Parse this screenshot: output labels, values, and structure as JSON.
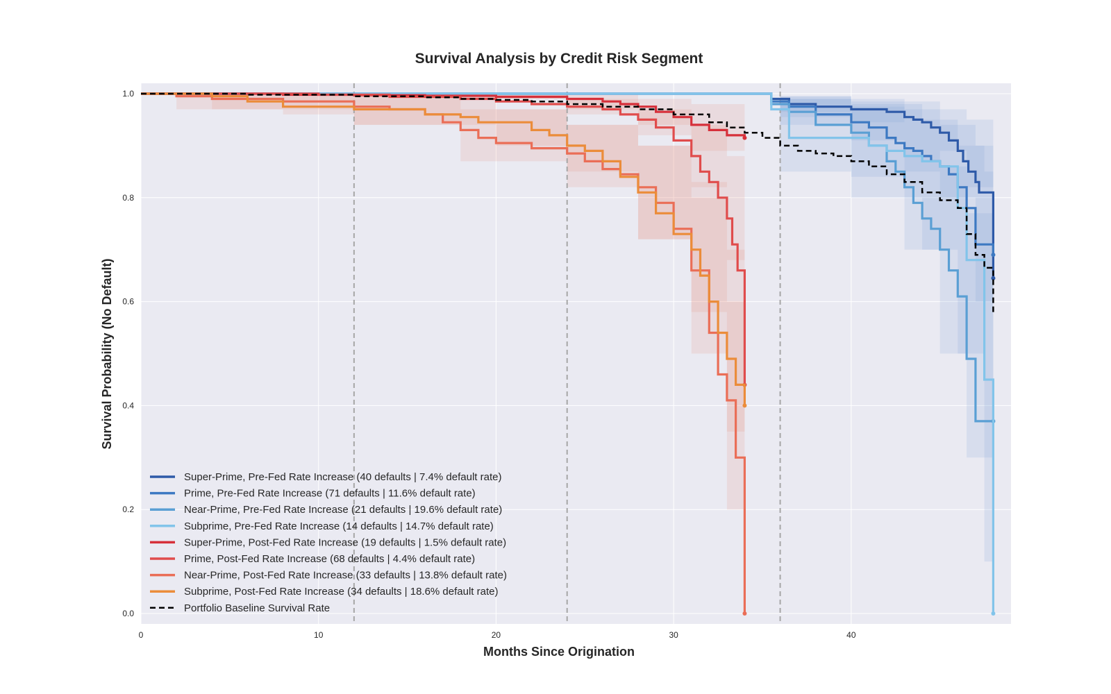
{
  "chart_data": {
    "type": "line",
    "title": "Survival Analysis by Credit Risk Segment",
    "xlabel": "Months Since Origination",
    "ylabel": "Survival Probability (No Default)",
    "xlim": [
      0,
      49
    ],
    "ylim": [
      -0.02,
      1.02
    ],
    "xticks": [
      0,
      10,
      20,
      30,
      40
    ],
    "yticks": [
      0.0,
      0.2,
      0.4,
      0.6,
      0.8,
      1.0
    ],
    "grid": true,
    "legend_position": "lower-left",
    "reference_lines_x": [
      12,
      24,
      36
    ],
    "colors": {
      "plot_background": "#eaeaf2",
      "grid": "#ffffff",
      "reference_line": "#a6a6a6",
      "band_blue": "#7b9ed6",
      "band_red": "#e6907a"
    },
    "series": [
      {
        "name": "Super-Prime, Pre-Fed Rate Increase (40 defaults | 7.4% default rate)",
        "color": "#2e5aa8",
        "x": [
          0,
          34.5,
          35.5,
          36.5,
          38,
          40,
          42,
          43,
          43.5,
          44,
          44.5,
          45,
          45.5,
          46,
          46.3,
          46.6,
          47,
          47.2,
          48
        ],
        "y": [
          1.0,
          1.0,
          0.99,
          0.98,
          0.975,
          0.97,
          0.965,
          0.955,
          0.95,
          0.945,
          0.935,
          0.925,
          0.91,
          0.89,
          0.87,
          0.85,
          0.83,
          0.81,
          0.645
        ],
        "band": [
          [
            0,
            1.0,
            1.0
          ],
          [
            36,
            0.995,
            0.965
          ],
          [
            40,
            0.99,
            0.945
          ],
          [
            43,
            0.985,
            0.93
          ],
          [
            45,
            0.97,
            0.89
          ],
          [
            46.5,
            0.95,
            0.82
          ],
          [
            48,
            0.87,
            0.6
          ]
        ]
      },
      {
        "name": "Prime, Pre-Fed Rate Increase (71 defaults | 11.6% default rate)",
        "color": "#3d79c2",
        "x": [
          0,
          34.5,
          35.5,
          36.5,
          38,
          40,
          41,
          42,
          42.5,
          43,
          43.5,
          44,
          44.5,
          45,
          45.5,
          46,
          46.5,
          47,
          48
        ],
        "y": [
          1.0,
          1.0,
          0.985,
          0.975,
          0.96,
          0.945,
          0.935,
          0.915,
          0.905,
          0.895,
          0.89,
          0.88,
          0.87,
          0.86,
          0.845,
          0.82,
          0.78,
          0.71,
          0.69
        ],
        "band": [
          [
            0,
            1.0,
            1.0
          ],
          [
            36,
            0.995,
            0.955
          ],
          [
            40,
            0.985,
            0.91
          ],
          [
            43,
            0.97,
            0.85
          ],
          [
            45,
            0.94,
            0.8
          ],
          [
            47,
            0.9,
            0.6
          ],
          [
            48,
            0.85,
            0.55
          ]
        ]
      },
      {
        "name": "Near-Prime, Pre-Fed Rate Increase (21 defaults | 19.6% default rate)",
        "color": "#5a9fd4",
        "x": [
          0,
          34.5,
          35.5,
          36.5,
          38,
          40,
          41,
          42,
          42.5,
          43,
          43.5,
          44,
          44.5,
          45,
          45.5,
          46,
          46.5,
          47,
          48
        ],
        "y": [
          1.0,
          1.0,
          0.98,
          0.965,
          0.94,
          0.925,
          0.9,
          0.87,
          0.85,
          0.82,
          0.79,
          0.76,
          0.74,
          0.7,
          0.66,
          0.61,
          0.49,
          0.37,
          0.37
        ],
        "band": [
          [
            0,
            1.0,
            1.0
          ],
          [
            36,
            0.99,
            0.94
          ],
          [
            40,
            0.975,
            0.84
          ],
          [
            43,
            0.93,
            0.7
          ],
          [
            45,
            0.86,
            0.5
          ],
          [
            46.5,
            0.77,
            0.3
          ],
          [
            48,
            0.7,
            0.17
          ]
        ]
      },
      {
        "name": "Subprime, Pre-Fed Rate Increase (14 defaults | 14.7% default rate)",
        "color": "#82c4ea",
        "x": [
          0,
          34.5,
          35.5,
          36.5,
          40,
          41,
          42,
          43,
          44,
          45,
          46,
          46.5,
          47,
          47.5,
          48
        ],
        "y": [
          1.0,
          1.0,
          0.97,
          0.915,
          0.915,
          0.9,
          0.89,
          0.88,
          0.87,
          0.86,
          0.78,
          0.68,
          0.68,
          0.45,
          0.0
        ],
        "band": [
          [
            0,
            1.0,
            1.0
          ],
          [
            36,
            0.99,
            0.85
          ],
          [
            40,
            0.98,
            0.8
          ],
          [
            44,
            0.95,
            0.7
          ],
          [
            46,
            0.9,
            0.5
          ],
          [
            47.5,
            0.85,
            0.1
          ],
          [
            48,
            0.8,
            0.0
          ]
        ]
      },
      {
        "name": "Super-Prime, Post-Fed Rate Increase (19 defaults | 1.5% default rate)",
        "color": "#d6303a",
        "x": [
          0,
          8,
          12,
          16,
          20,
          24,
          26,
          27,
          28,
          29,
          30,
          31,
          32,
          33,
          34
        ],
        "y": [
          1.0,
          0.998,
          0.997,
          0.996,
          0.994,
          0.99,
          0.985,
          0.98,
          0.975,
          0.965,
          0.955,
          0.94,
          0.93,
          0.92,
          0.915
        ],
        "band": [
          [
            0,
            1.0,
            1.0
          ],
          [
            12,
            1.0,
            0.99
          ],
          [
            24,
            0.998,
            0.97
          ],
          [
            28,
            0.99,
            0.94
          ],
          [
            31,
            0.98,
            0.89
          ],
          [
            34,
            0.97,
            0.85
          ]
        ]
      },
      {
        "name": "Prime, Post-Fed Rate Increase (68 defaults | 4.4% default rate)",
        "color": "#e04c4c",
        "x": [
          0,
          10,
          14,
          18,
          20,
          22,
          24,
          26,
          27,
          28,
          29,
          30,
          31,
          31.5,
          32,
          32.5,
          33,
          33.3,
          33.6,
          34
        ],
        "y": [
          1.0,
          0.998,
          0.994,
          0.99,
          0.985,
          0.98,
          0.975,
          0.97,
          0.96,
          0.95,
          0.935,
          0.91,
          0.88,
          0.85,
          0.83,
          0.8,
          0.76,
          0.71,
          0.66,
          0.44
        ],
        "band": [
          [
            0,
            1.0,
            1.0
          ],
          [
            12,
            1.0,
            0.99
          ],
          [
            24,
            0.99,
            0.96
          ],
          [
            28,
            0.97,
            0.92
          ],
          [
            31,
            0.94,
            0.82
          ],
          [
            33,
            0.88,
            0.68
          ],
          [
            34,
            0.75,
            0.3
          ]
        ]
      },
      {
        "name": "Near-Prime, Post-Fed Rate Increase (33 defaults | 13.8% default rate)",
        "color": "#ea6e57",
        "x": [
          0,
          2,
          4,
          8,
          12,
          14,
          16,
          17,
          18,
          19,
          20,
          22,
          24,
          25,
          26,
          27,
          28,
          29,
          30,
          31,
          32,
          32.5,
          33,
          33.5,
          34
        ],
        "y": [
          1.0,
          0.995,
          0.99,
          0.985,
          0.975,
          0.97,
          0.96,
          0.945,
          0.93,
          0.915,
          0.905,
          0.895,
          0.885,
          0.87,
          0.855,
          0.845,
          0.82,
          0.79,
          0.74,
          0.66,
          0.54,
          0.46,
          0.41,
          0.3,
          0.0
        ],
        "band": [
          [
            0,
            1.0,
            1.0
          ],
          [
            2,
            1.0,
            0.97
          ],
          [
            8,
            0.995,
            0.96
          ],
          [
            12,
            0.99,
            0.94
          ],
          [
            18,
            0.97,
            0.87
          ],
          [
            24,
            0.94,
            0.82
          ],
          [
            28,
            0.9,
            0.72
          ],
          [
            31,
            0.8,
            0.5
          ],
          [
            33,
            0.6,
            0.2
          ],
          [
            34,
            0.45,
            0.07
          ]
        ]
      },
      {
        "name": "Subprime, Post-Fed Rate Increase (34 defaults | 18.6% default rate)",
        "color": "#eb8c3a",
        "x": [
          0,
          4,
          6,
          8,
          12,
          16,
          18,
          19,
          20,
          21,
          22,
          23,
          24,
          25,
          26,
          27,
          28,
          29,
          30,
          31,
          31.5,
          32,
          32.5,
          33,
          33.5,
          34
        ],
        "y": [
          1.0,
          0.995,
          0.985,
          0.975,
          0.97,
          0.96,
          0.955,
          0.945,
          0.945,
          0.945,
          0.93,
          0.92,
          0.9,
          0.89,
          0.87,
          0.84,
          0.81,
          0.77,
          0.73,
          0.7,
          0.65,
          0.6,
          0.54,
          0.49,
          0.44,
          0.4
        ],
        "band": [
          [
            0,
            1.0,
            1.0
          ],
          [
            4,
            1.0,
            0.97
          ],
          [
            12,
            0.99,
            0.94
          ],
          [
            20,
            0.97,
            0.9
          ],
          [
            24,
            0.94,
            0.85
          ],
          [
            28,
            0.9,
            0.72
          ],
          [
            31,
            0.83,
            0.58
          ],
          [
            33,
            0.7,
            0.35
          ],
          [
            34,
            0.6,
            0.25
          ]
        ]
      },
      {
        "name": "Portfolio Baseline Survival Rate",
        "color": "#000000",
        "dashed": true,
        "x": [
          0,
          6,
          12,
          16,
          18,
          20,
          22,
          24,
          26,
          28,
          30,
          32,
          33,
          34,
          35,
          36,
          37,
          38,
          39,
          40,
          41,
          42,
          43,
          44,
          45,
          46,
          46.5,
          47,
          47.5,
          48
        ],
        "y": [
          1.0,
          0.998,
          0.995,
          0.993,
          0.99,
          0.988,
          0.985,
          0.98,
          0.975,
          0.97,
          0.96,
          0.945,
          0.935,
          0.925,
          0.915,
          0.9,
          0.89,
          0.885,
          0.88,
          0.87,
          0.86,
          0.845,
          0.83,
          0.81,
          0.795,
          0.78,
          0.73,
          0.69,
          0.665,
          0.58
        ],
        "band": null
      }
    ]
  }
}
